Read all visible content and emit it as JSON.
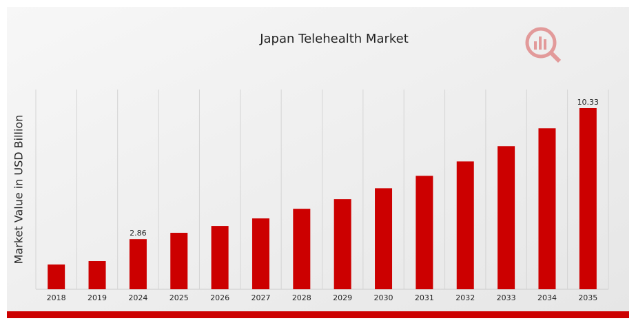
{
  "chart_data": {
    "type": "bar",
    "title": "Japan Telehealth Market",
    "y_label": "Market Value in USD Billion",
    "categories": [
      "2018",
      "2019",
      "2024",
      "2025",
      "2026",
      "2027",
      "2028",
      "2029",
      "2030",
      "2031",
      "2032",
      "2033",
      "2034",
      "2035"
    ],
    "values": [
      1.41,
      1.61,
      2.86,
      3.22,
      3.61,
      4.04,
      4.59,
      5.14,
      5.76,
      6.47,
      7.29,
      8.16,
      9.18,
      10.33
    ],
    "value_labels": [
      null,
      null,
      "2.86",
      null,
      null,
      null,
      null,
      null,
      null,
      null,
      null,
      null,
      null,
      "10.33"
    ],
    "color": "#cc0000",
    "grid": true
  }
}
